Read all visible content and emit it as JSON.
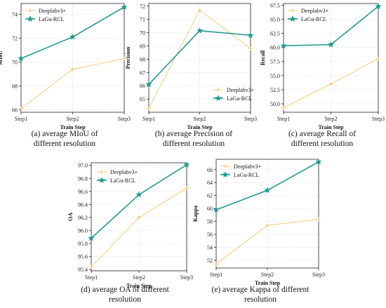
{
  "colors": {
    "deeplab": "#f2c76a",
    "lagu": "#1f9a8e",
    "grid": "#d9d9d9",
    "axis": "#222222"
  },
  "chart_data": [
    {
      "type": "line",
      "title": "",
      "xlabel": "Train Step",
      "ylabel": "MIoU",
      "categories": [
        "Step1",
        "Step2",
        "Step3"
      ],
      "ylim": [
        65.8,
        74.9
      ],
      "yticks": [
        66,
        68,
        70,
        72,
        74
      ],
      "ytick_labels": [
        "66",
        "68",
        "70",
        "72",
        "74"
      ],
      "legend": "top-left",
      "grid": true,
      "series": [
        {
          "name": "Deeplabv3+",
          "values": [
            66.1,
            69.4,
            70.3
          ],
          "marker": "plus"
        },
        {
          "name": "LaGu-RCL",
          "values": [
            70.3,
            72.1,
            74.6
          ],
          "marker": "star"
        }
      ],
      "caption": [
        "(a) average MIoU of",
        "different resolution"
      ]
    },
    {
      "type": "line",
      "title": "",
      "xlabel": "Train Step",
      "ylabel": "Precision",
      "categories": [
        "Step1",
        "Step2",
        "Step3"
      ],
      "ylim": [
        64,
        72.2
      ],
      "yticks": [
        65,
        66,
        67,
        68,
        69,
        70,
        71,
        72
      ],
      "ytick_labels": [
        "65",
        "66",
        "67",
        "68",
        "69",
        "70",
        "71",
        "72"
      ],
      "legend": "bottom-right",
      "grid": true,
      "series": [
        {
          "name": "Deeplabv3+",
          "values": [
            64.3,
            71.7,
            68.8
          ],
          "marker": "plus"
        },
        {
          "name": "LaGu-RCL",
          "values": [
            66.1,
            70.15,
            69.8
          ],
          "marker": "star"
        }
      ],
      "caption": [
        "(b) average Precision of",
        "different resolution"
      ]
    },
    {
      "type": "line",
      "title": "",
      "xlabel": "Train Step",
      "ylabel": "Recall",
      "categories": [
        "Step1",
        "Step2",
        "Step3"
      ],
      "ylim": [
        48.5,
        67.8
      ],
      "yticks": [
        50,
        52.5,
        55,
        57.5,
        60,
        62.5,
        65,
        67.5
      ],
      "ytick_labels": [
        "50.0",
        "52.5",
        "55.0",
        "57.5",
        "60.0",
        "62.5",
        "65.0",
        "67.5"
      ],
      "legend": "top-left",
      "grid": true,
      "series": [
        {
          "name": "Deeplabv3+",
          "values": [
            49.3,
            53.5,
            58.0
          ],
          "marker": "plus"
        },
        {
          "name": "LaGu-RCL",
          "values": [
            60.3,
            60.5,
            67.3
          ],
          "marker": "star"
        }
      ],
      "caption": [
        "(c)  average Recall of",
        "different resolution"
      ]
    },
    {
      "type": "line",
      "title": "",
      "xlabel": "Train Step",
      "ylabel": "OA",
      "categories": [
        "Step1",
        "Step2",
        "Step3"
      ],
      "ylim": [
        95.38,
        97.04
      ],
      "yticks": [
        95.4,
        95.6,
        95.8,
        96.0,
        96.2,
        96.4,
        96.6,
        96.8,
        97.0
      ],
      "ytick_labels": [
        "95.4",
        "95.6",
        "95.8",
        "96.0",
        "96.2",
        "96.4",
        "96.6",
        "96.8",
        "97.0"
      ],
      "legend": "top-left",
      "grid": true,
      "series": [
        {
          "name": "Deeplabv3+",
          "values": [
            95.44,
            96.2,
            96.65
          ],
          "marker": "plus"
        },
        {
          "name": "LaGu-RCL",
          "values": [
            95.88,
            96.55,
            97.01
          ],
          "marker": "star"
        }
      ],
      "caption": [
        "(d) average OA of different",
        "resolution"
      ]
    },
    {
      "type": "line",
      "title": "",
      "xlabel": "Train Step",
      "ylabel": "Kappa",
      "categories": [
        "Step1",
        "Step2",
        "Step3"
      ],
      "ylim": [
        50.8,
        67.6
      ],
      "yticks": [
        52,
        54,
        56,
        58,
        60,
        62,
        64,
        66
      ],
      "ytick_labels": [
        "52",
        "54",
        "56",
        "58",
        "60",
        "62",
        "64",
        "66"
      ],
      "legend": "top-left",
      "grid": true,
      "series": [
        {
          "name": "Deeplabv3+",
          "values": [
            51.4,
            57.4,
            58.3
          ],
          "marker": "plus"
        },
        {
          "name": "LaGu-RCL",
          "values": [
            59.8,
            62.8,
            67.2
          ],
          "marker": "star"
        }
      ],
      "caption": [
        "(e) average Kappa of different",
        "resolution"
      ]
    }
  ]
}
